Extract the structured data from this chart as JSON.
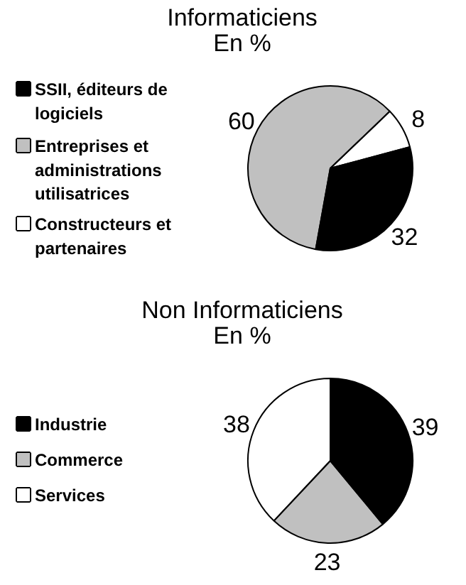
{
  "chart_data": [
    {
      "type": "pie",
      "title": "Informaticiens",
      "subtitle": "En %",
      "categories": [
        "SSII, éditeurs de logiciels",
        "Entreprises et administrations utilisatrices",
        "Constructeurs et partenaires"
      ],
      "values": [
        32,
        60,
        8
      ],
      "colors": [
        "#000000",
        "#c0c0c0",
        "#ffffff"
      ],
      "data_labels": true,
      "legend": "left"
    },
    {
      "type": "pie",
      "title": "Non Informaticiens",
      "subtitle": "En %",
      "categories": [
        "Industrie",
        "Commerce",
        "Services"
      ],
      "values": [
        39,
        23,
        38
      ],
      "colors": [
        "#000000",
        "#c0c0c0",
        "#ffffff"
      ],
      "data_labels": true,
      "legend": "left"
    }
  ]
}
